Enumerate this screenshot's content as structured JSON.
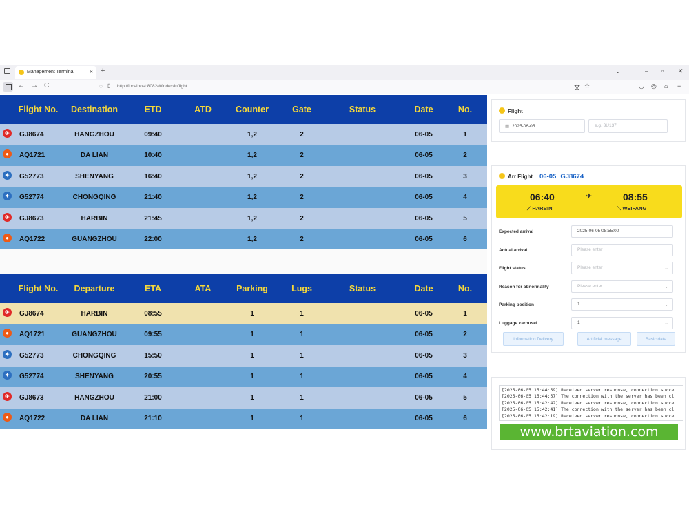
{
  "browser": {
    "tab_title": "Management Terminal",
    "tab_close": "×",
    "new_tab": "+",
    "url": "http://localhost:8082/#/index/inflight",
    "nav_back": "←",
    "nav_forward": "→",
    "nav_reload": "C",
    "win_min": "–",
    "win_max": "▫",
    "win_close": "✕",
    "win_dropdown": "⌄"
  },
  "departures": {
    "headers": [
      "Flight No.",
      "Destination",
      "ETD",
      "ATD",
      "Counter",
      "Gate",
      "Status",
      "Date",
      "No."
    ],
    "rows": [
      {
        "logo": "red",
        "flight": "GJ8674",
        "place": "HANGZHOU",
        "time": "09:40",
        "actual": "",
        "col5": "1,2",
        "col6": "2",
        "status": "",
        "date": "06-05",
        "no": "1"
      },
      {
        "logo": "orange",
        "flight": "AQ1721",
        "place": "DA LIAN",
        "time": "10:40",
        "actual": "",
        "col5": "1,2",
        "col6": "2",
        "status": "",
        "date": "06-05",
        "no": "2"
      },
      {
        "logo": "blue",
        "flight": "G52773",
        "place": "SHENYANG",
        "time": "16:40",
        "actual": "",
        "col5": "1,2",
        "col6": "2",
        "status": "",
        "date": "06-05",
        "no": "3"
      },
      {
        "logo": "blue",
        "flight": "G52774",
        "place": "CHONGQING",
        "time": "21:40",
        "actual": "",
        "col5": "1,2",
        "col6": "2",
        "status": "",
        "date": "06-05",
        "no": "4"
      },
      {
        "logo": "red",
        "flight": "GJ8673",
        "place": "HARBIN",
        "time": "21:45",
        "actual": "",
        "col5": "1,2",
        "col6": "2",
        "status": "",
        "date": "06-05",
        "no": "5"
      },
      {
        "logo": "orange",
        "flight": "AQ1722",
        "place": "GUANGZHOU",
        "time": "22:00",
        "actual": "",
        "col5": "1,2",
        "col6": "2",
        "status": "",
        "date": "06-05",
        "no": "6"
      }
    ]
  },
  "arrivals": {
    "headers": [
      "Flight No.",
      "Departure",
      "ETA",
      "ATA",
      "Parking",
      "Lugs",
      "Status",
      "Date",
      "No."
    ],
    "rows": [
      {
        "logo": "red",
        "flight": "GJ8674",
        "place": "HARBIN",
        "time": "08:55",
        "actual": "",
        "col5": "1",
        "col6": "1",
        "status": "",
        "date": "06-05",
        "no": "1"
      },
      {
        "logo": "orange",
        "flight": "AQ1721",
        "place": "GUANGZHOU",
        "time": "09:55",
        "actual": "",
        "col5": "1",
        "col6": "1",
        "status": "",
        "date": "06-05",
        "no": "2"
      },
      {
        "logo": "blue",
        "flight": "G52773",
        "place": "CHONGQING",
        "time": "15:50",
        "actual": "",
        "col5": "1",
        "col6": "1",
        "status": "",
        "date": "06-05",
        "no": "3"
      },
      {
        "logo": "blue",
        "flight": "G52774",
        "place": "SHENYANG",
        "time": "20:55",
        "actual": "",
        "col5": "1",
        "col6": "1",
        "status": "",
        "date": "06-05",
        "no": "4"
      },
      {
        "logo": "red",
        "flight": "GJ8673",
        "place": "HANGZHOU",
        "time": "21:00",
        "actual": "",
        "col5": "1",
        "col6": "1",
        "status": "",
        "date": "06-05",
        "no": "5"
      },
      {
        "logo": "orange",
        "flight": "AQ1722",
        "place": "DA LIAN",
        "time": "21:10",
        "actual": "",
        "col5": "1",
        "col6": "1",
        "status": "",
        "date": "06-05",
        "no": "6"
      }
    ],
    "selected_index": 0
  },
  "flight_search": {
    "title": "Flight",
    "date_value": "2025-06-05",
    "flight_placeholder": "e.g. 3U137"
  },
  "arr_flight": {
    "title": "Arr Flight",
    "date": "06-05",
    "flight_no": "GJ8674",
    "dep_time": "06:40",
    "dep_city": "HARBIN",
    "arr_time": "08:55",
    "arr_city": "WEIFANG",
    "plane_glyph": "✈",
    "fields": [
      {
        "label": "Expected arrival",
        "value": "2025-06-05 08:55:00",
        "placeholder": "",
        "dropdown": false
      },
      {
        "label": "Actual arrival",
        "value": "",
        "placeholder": "Please enter",
        "dropdown": false
      },
      {
        "label": "Flight status",
        "value": "",
        "placeholder": "Please enter",
        "dropdown": true
      },
      {
        "label": "Reason for abnormality",
        "value": "",
        "placeholder": "Please enter",
        "dropdown": true
      },
      {
        "label": "Parking position",
        "value": "1",
        "placeholder": "",
        "dropdown": true
      },
      {
        "label": "Luggage carousel",
        "value": "1",
        "placeholder": "",
        "dropdown": true
      }
    ],
    "buttons": [
      "Information Delivery",
      "Artificial message",
      "Basic data"
    ]
  },
  "log": {
    "lines": [
      "[2025-06-05 15:44:59] Received server response, connection succe",
      "[2025-06-05 15:44:57] The connection with the server has been cl",
      "[2025-06-05 15:42:42] Received server response, connection succe",
      "[2025-06-05 15:42:41] The connection with the server has been cl",
      "[2025-06-05 15:42:19] Received server response, connection succe"
    ]
  },
  "watermark": "www.brtaviation.com",
  "colors": {
    "header_bg": "#0d3fa8",
    "header_text": "#f6d83a",
    "row_light": "#b7cbe6",
    "row_blue": "#6ba6d6",
    "row_selected": "#f0e2ae",
    "accent_yellow": "#f8dc1c"
  }
}
